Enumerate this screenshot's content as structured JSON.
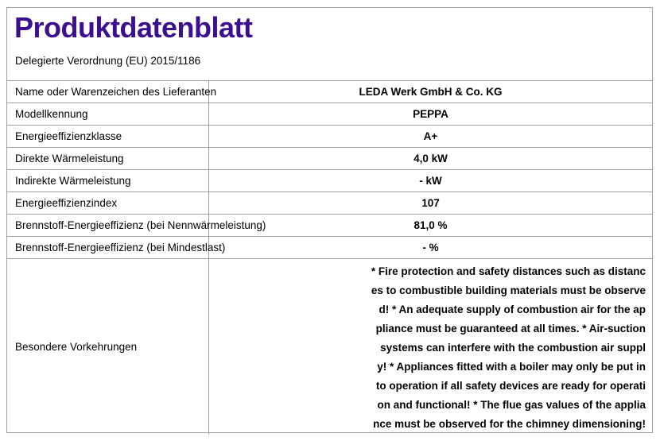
{
  "title": "Produktdatenblatt",
  "subtitle": "Delegierte Verordnung (EU) 2015/1186",
  "rows": [
    {
      "label": "Name oder Warenzeichen des Lieferanten",
      "value": "LEDA Werk GmbH & Co. KG"
    },
    {
      "label": "Modellkennung",
      "value": "PEPPA"
    },
    {
      "label": "Energieeffizienzklasse",
      "value": "A+"
    },
    {
      "label": "Direkte Wärmeleistung",
      "value": "4,0 kW"
    },
    {
      "label": "Indirekte Wärmeleistung",
      "value": "- kW"
    },
    {
      "label": "Energieeffizienzindex",
      "value": "107"
    },
    {
      "label": "Brennstoff-Energieeffizienz (bei Nennwärmeleistung)",
      "value": "81,0 %"
    },
    {
      "label": "Brennstoff-Energieeffizienz (bei Mindestlast)",
      "value": "- %"
    }
  ],
  "precautions": {
    "label": "Besondere Vorkehrungen",
    "lines": [
      "* Fire protection and safety distances such as distanc",
      "es to combustible building materials must be observe",
      "d! * An adequate supply of combustion air for the ap",
      "pliance must be guaranteed at all times. * Air-suction",
      "systems can interfere with the combustion air suppl",
      "y! * Appliances fitted with a boiler may only be put in",
      "to operation if all safety devices are ready for operati",
      "on and functional! * The flue gas values of the applia",
      "nce must be observed for the chimney dimensioning!"
    ]
  }
}
